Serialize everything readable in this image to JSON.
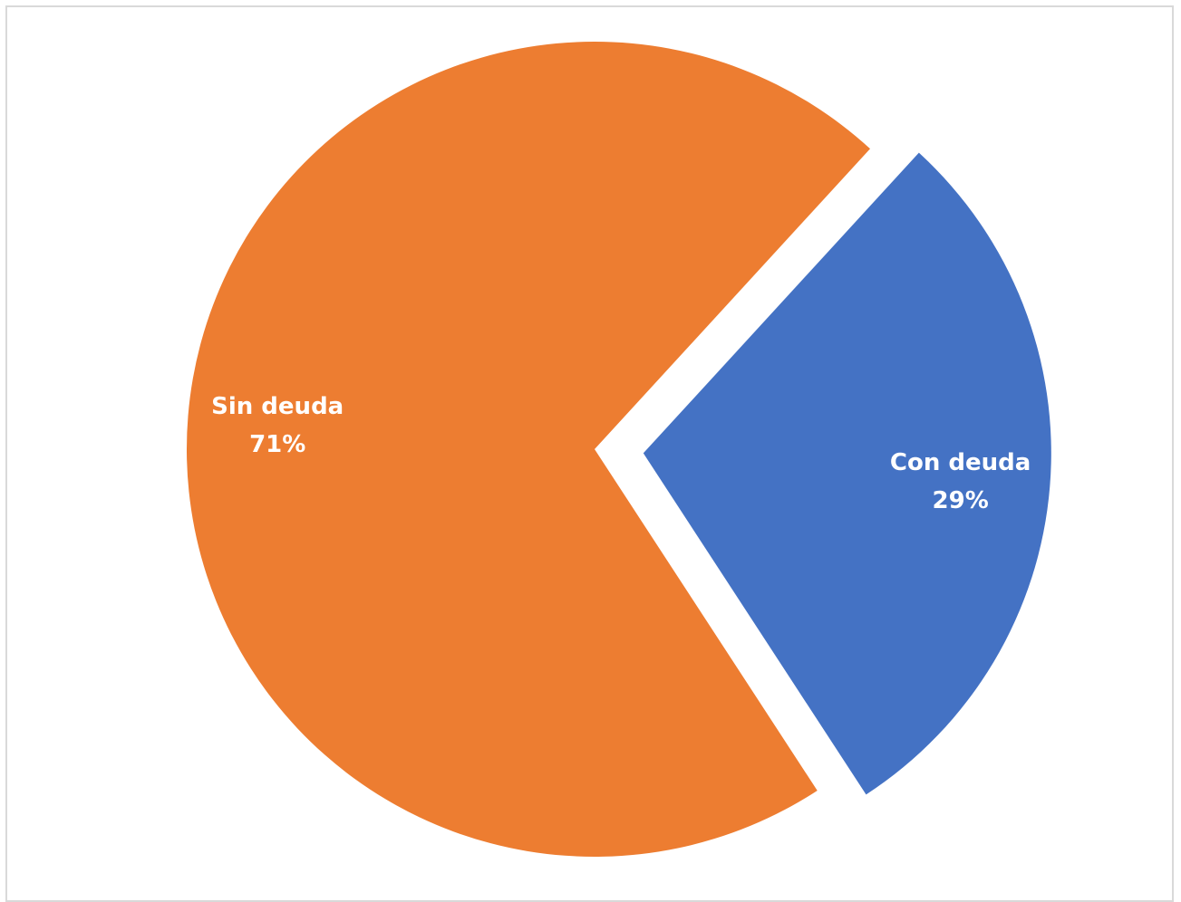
{
  "chart_data": {
    "type": "pie",
    "title": "",
    "slices": [
      {
        "label": "Con deuda",
        "value": 29,
        "percent_label": "29%",
        "color": "#4472C4",
        "exploded": true
      },
      {
        "label": "Sin deuda",
        "value": 71,
        "percent_label": "71%",
        "color": "#ED7D31",
        "exploded": false
      }
    ],
    "legend": "none",
    "data_labels": "inside"
  }
}
